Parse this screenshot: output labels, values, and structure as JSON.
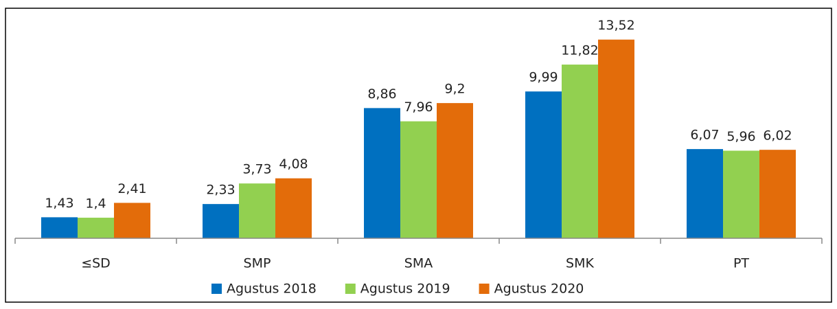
{
  "chart_data": {
    "type": "bar",
    "categories": [
      "≤SD",
      "SMP",
      "SMA",
      "SMK",
      "PT"
    ],
    "series": [
      {
        "name": "Agustus 2018",
        "color": "#0070c0",
        "values": [
          1.43,
          2.33,
          8.86,
          9.99,
          6.07
        ],
        "value_labels": [
          "1,43",
          "2,33",
          "8,86",
          "9,99",
          "6,07"
        ]
      },
      {
        "name": "Agustus 2019",
        "color": "#92d050",
        "values": [
          1.4,
          3.73,
          7.96,
          11.82,
          5.96
        ],
        "value_labels": [
          "1,4",
          "3,73",
          "7,96",
          "11,82",
          "5,96"
        ]
      },
      {
        "name": "Agustus 2020",
        "color": "#e36c0a",
        "values": [
          2.41,
          4.08,
          9.2,
          13.52,
          6.02
        ],
        "value_labels": [
          "2,41",
          "4,08",
          "9,2",
          "13,52",
          "6,02"
        ]
      }
    ],
    "ylim": [
      0,
      15
    ],
    "legend": "bottom"
  }
}
